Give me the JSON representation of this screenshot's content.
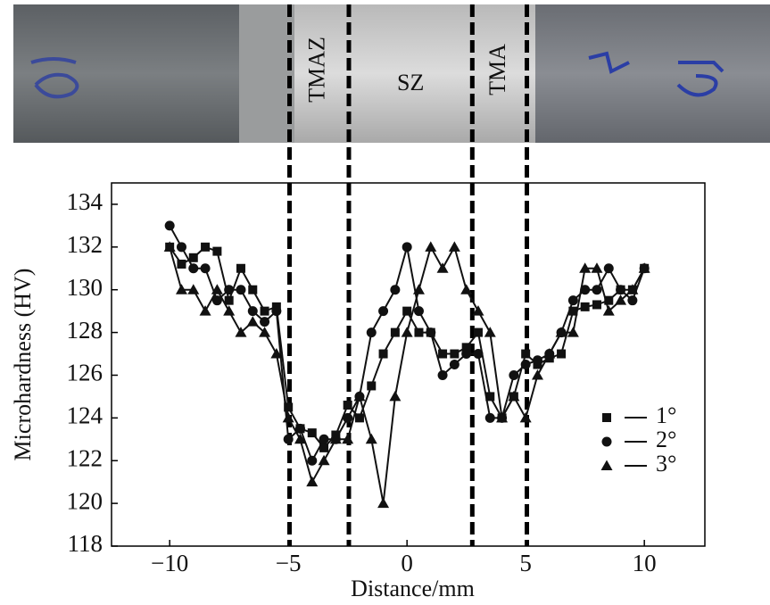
{
  "chart_data": {
    "type": "line",
    "xlabel": "Distance/mm",
    "ylabel": "Microhardness (HV)",
    "zone_labels": [
      "TMAZ",
      "SZ",
      "TMA"
    ],
    "zone_boundaries": [
      -4.95,
      -2.45,
      2.75,
      5.05
    ],
    "x": [
      -10,
      -9.5,
      -9,
      -8.5,
      -8,
      -7.5,
      -7,
      -6.5,
      -6,
      -5.5,
      -5,
      -4.5,
      -4,
      -3.5,
      -3,
      -2.5,
      -2,
      -1.5,
      -1,
      -0.5,
      0,
      0.5,
      1,
      1.5,
      2,
      2.5,
      3,
      3.5,
      4,
      4.5,
      5,
      5.5,
      6,
      6.5,
      7,
      7.5,
      8,
      8.5,
      9,
      9.5,
      10
    ],
    "series": [
      {
        "name": "1°",
        "color": "#111111",
        "marker": "square",
        "values": [
          132,
          131.2,
          131.5,
          132,
          131.8,
          129.5,
          131,
          130,
          129,
          129.2,
          124.5,
          123.5,
          123.3,
          122.6,
          123.2,
          124.6,
          124,
          125.5,
          127,
          128,
          129,
          128,
          128,
          127,
          127,
          127.3,
          128,
          125,
          124,
          125,
          127,
          126.5,
          126.8,
          127,
          129,
          129.2,
          129.3,
          129.5,
          130,
          130,
          131
        ]
      },
      {
        "name": "2°",
        "color": "#111111",
        "marker": "circle",
        "values": [
          133,
          132,
          131,
          131,
          129.5,
          130,
          130,
          129,
          128.5,
          129,
          123,
          123.5,
          122,
          123,
          123,
          124,
          125,
          128,
          129,
          130,
          132,
          129,
          128,
          126,
          126.5,
          127,
          127,
          124,
          124,
          126,
          126.5,
          126.7,
          127,
          128,
          129.5,
          130,
          130,
          131,
          130,
          129.5,
          131
        ]
      },
      {
        "name": "3°",
        "color": "#111111",
        "marker": "triangle",
        "values": [
          132,
          130,
          130,
          129,
          130,
          129,
          128,
          128.5,
          128,
          127,
          124,
          123,
          121,
          122,
          123,
          123,
          125,
          123,
          120,
          125,
          128,
          130,
          132,
          131,
          132,
          130,
          129,
          128,
          124,
          125,
          124,
          126,
          127,
          128,
          128,
          131,
          131,
          129,
          129.5,
          130,
          131
        ]
      }
    ],
    "xlim": [
      -12.45,
      12.55
    ],
    "ylim": [
      118,
      135
    ],
    "xticks": [
      {
        "value": -10,
        "label": "−10"
      },
      {
        "value": -5,
        "label": "−5"
      },
      0,
      5,
      10
    ],
    "yticks": [
      118,
      120,
      122,
      124,
      126,
      128,
      130,
      132,
      134
    ],
    "legend": "right"
  }
}
